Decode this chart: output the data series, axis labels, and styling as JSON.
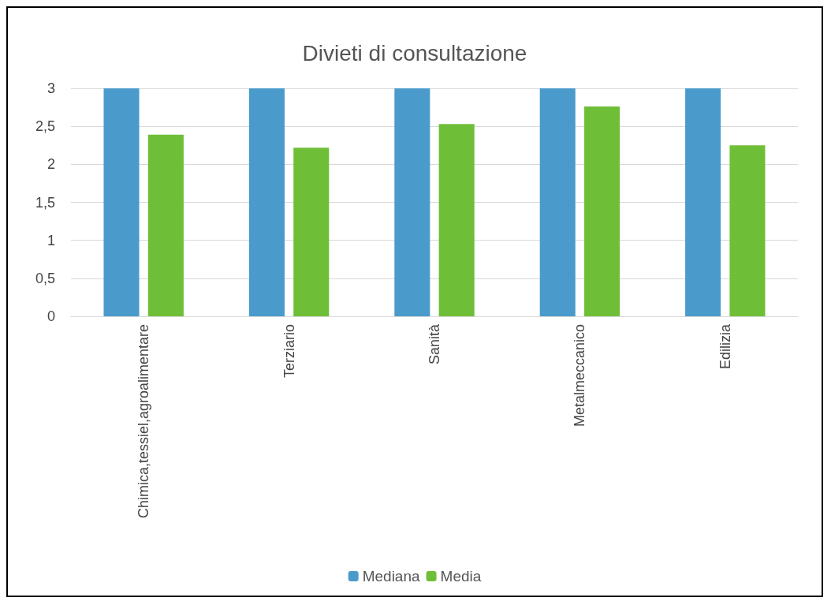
{
  "chart_data": {
    "type": "bar",
    "title": "Divieti di consultazione",
    "categories": [
      "Chimica,tessiel,agroalimentare",
      "Terziario",
      "Sanità",
      "Metalmeccanico",
      "Edilizia"
    ],
    "series": [
      {
        "name": "Mediana",
        "color": "#4a9bcb",
        "values": [
          3,
          3,
          3,
          3,
          3
        ]
      },
      {
        "name": "Media",
        "color": "#6fbe38",
        "values": [
          2.39,
          2.22,
          2.53,
          2.76,
          2.25
        ]
      }
    ],
    "ylim": [
      0,
      3
    ],
    "yticks": [
      0,
      {
        "value": 0.5,
        "label": "0,5"
      },
      1,
      {
        "value": 1.5,
        "label": "1,5"
      },
      2,
      {
        "value": 2.5,
        "label": "2,5"
      },
      3
    ],
    "grid": "y",
    "legend": "bottom"
  }
}
